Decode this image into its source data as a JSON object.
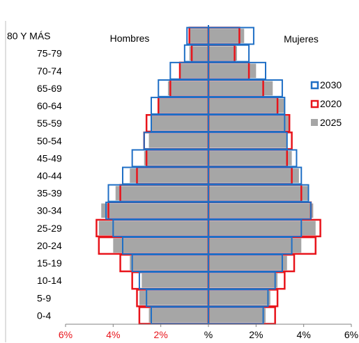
{
  "chart_data": {
    "type": "bar",
    "orientation": "horizontal",
    "layout": "population-pyramid",
    "categories": [
      "80 Y MÁS",
      "75-79",
      "70-74",
      "65-69",
      "60-64",
      "55-59",
      "50-54",
      "45-49",
      "40-44",
      "35-39",
      "30-34",
      "25-29",
      "20-24",
      "15-19",
      "10-14",
      "5-9",
      "0-4"
    ],
    "left_label": "Hombres",
    "right_label": "Mujeres",
    "xlim": [
      -6,
      6
    ],
    "x_ticks": [
      -6,
      -4,
      -2,
      0,
      2,
      4,
      6
    ],
    "x_tick_labels": [
      "6%",
      "4%",
      "2%",
      "%",
      "2%",
      "4%",
      "6%"
    ],
    "legend_position": "right",
    "legend": [
      {
        "name": "2030",
        "style": "outline",
        "color": "#1f6fc5"
      },
      {
        "name": "2020",
        "style": "outline",
        "color": "#e8141b"
      },
      {
        "name": "2025",
        "style": "filled",
        "color": "#a6a6a6"
      }
    ],
    "series": [
      {
        "name": "2025",
        "style": "filled",
        "color": "#a6a6a6",
        "hombres": [
          0.8,
          0.8,
          1.2,
          1.7,
          2.1,
          2.4,
          2.5,
          2.7,
          3.3,
          3.9,
          4.5,
          4.6,
          4.0,
          3.3,
          2.8,
          2.9,
          2.5
        ],
        "mujeres": [
          1.5,
          1.2,
          2.0,
          2.7,
          3.2,
          3.4,
          3.3,
          3.5,
          3.8,
          4.2,
          4.4,
          4.5,
          3.9,
          3.3,
          2.9,
          2.6,
          2.4
        ]
      },
      {
        "name": "2020",
        "style": "outline",
        "color": "#e8141b",
        "hombres": [
          0.8,
          0.7,
          1.2,
          1.6,
          2.1,
          2.6,
          2.7,
          2.6,
          3.0,
          3.7,
          4.2,
          4.7,
          4.6,
          3.7,
          3.2,
          3.0,
          2.9
        ],
        "mujeres": [
          1.3,
          1.1,
          1.7,
          2.3,
          2.9,
          3.4,
          3.5,
          3.3,
          3.5,
          3.9,
          4.3,
          4.7,
          4.5,
          3.6,
          3.2,
          2.9,
          2.8
        ]
      },
      {
        "name": "2030",
        "style": "outline",
        "color": "#1f6fc5",
        "hombres": [
          0.9,
          1.0,
          1.6,
          2.1,
          2.4,
          2.4,
          2.7,
          3.2,
          3.6,
          4.2,
          4.3,
          4.0,
          3.6,
          3.2,
          2.9,
          2.6,
          2.4
        ],
        "mujeres": [
          1.9,
          1.7,
          2.4,
          3.1,
          3.2,
          3.2,
          3.3,
          3.7,
          3.9,
          4.2,
          4.3,
          3.9,
          3.5,
          3.1,
          2.8,
          2.5,
          2.3
        ]
      }
    ]
  }
}
